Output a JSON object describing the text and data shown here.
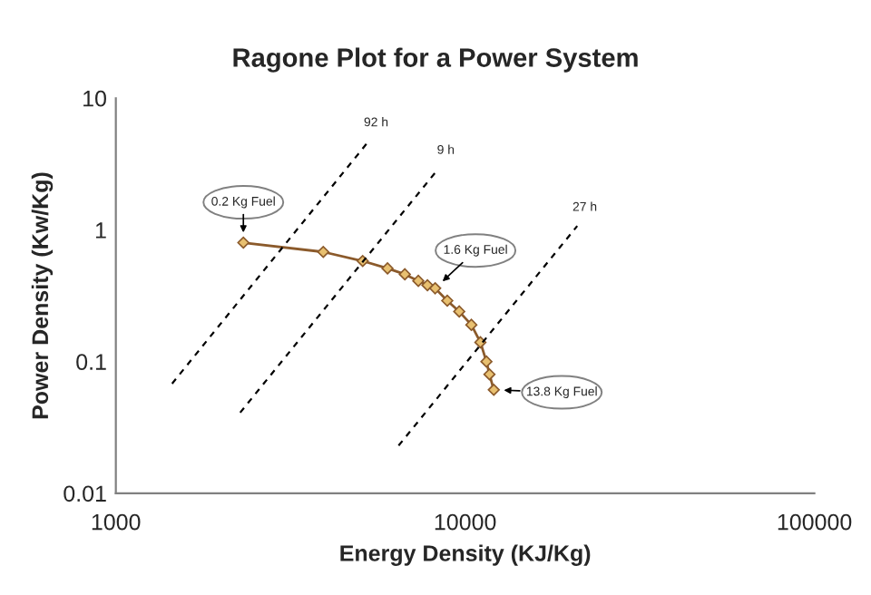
{
  "chart_data": {
    "type": "line",
    "title": "Ragone Plot for a Power System",
    "xlabel": "Energy Density (KJ/Kg)",
    "ylabel": "Power Density (Kw/Kg)",
    "log": "xy",
    "xlim": [
      1000,
      100000
    ],
    "xticks": [
      1000,
      10000,
      100000
    ],
    "ylim": [
      0.01,
      10
    ],
    "yticks": [
      0.01,
      0.1,
      1,
      10
    ],
    "grid": false,
    "legend": false,
    "series": [
      {
        "color": "#8b5a2b",
        "marker": "diamond",
        "line_style": "solid",
        "x": [
          2318,
          3925,
          5090,
          5995,
          6720,
          7345,
          7800,
          8210,
          8890,
          9620,
          10420,
          11060,
          11510,
          11740,
          12080
        ],
        "values": [
          0.8,
          0.68,
          0.58,
          0.51,
          0.46,
          0.41,
          0.38,
          0.36,
          0.29,
          0.24,
          0.19,
          0.14,
          0.1,
          0.08,
          0.061
        ]
      },
      {
        "name": "92 h",
        "color": "#000000",
        "marker": "none",
        "line_style": "dashed",
        "x": [
          1449,
          5290
        ],
        "values": [
          0.068,
          4.7
        ]
      },
      {
        "name": "9 h",
        "color": "#000000",
        "marker": "none",
        "line_style": "dashed",
        "x": [
          2270,
          8375
        ],
        "values": [
          0.041,
          2.9
        ]
      },
      {
        "name": "27 h",
        "color": "#000000",
        "marker": "none",
        "line_style": "dashed",
        "x": [
          6450,
          20940
        ],
        "values": [
          0.023,
          1.07
        ]
      }
    ],
    "annotations": [
      {
        "text": "0.2 Kg Fuel",
        "x": 2318,
        "y": 0.8
      },
      {
        "text": "1.6 Kg Fuel",
        "x": 8210,
        "y": 0.36
      },
      {
        "text": "13.8 Kg Fuel",
        "x": 12080,
        "y": 0.061
      }
    ]
  }
}
